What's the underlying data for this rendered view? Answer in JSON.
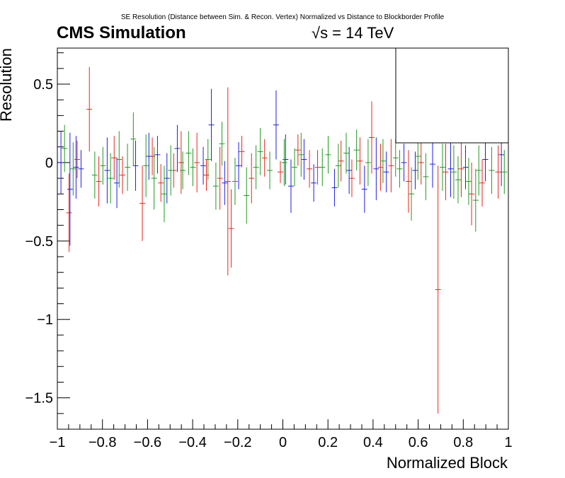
{
  "header": {
    "title": "SE Resolution (Distance between Sim. & Recon. Vertex) Normalized vs Distance to Blockborder Profile",
    "experiment": "CMS Simulation",
    "energy": "√s = 14 TeV"
  },
  "chart_data": {
    "type": "scatter",
    "title": "SE Resolution (Distance between Sim. & Recon. Vertex) Normalized vs Distance to Blockborder Profile",
    "xlabel": "Normalized Block",
    "ylabel": "Resolution",
    "xlim": [
      -1,
      1
    ],
    "ylim": [
      -1.7,
      0.73
    ],
    "xticks": [
      -1,
      -0.8,
      -0.6,
      -0.4,
      -0.2,
      0,
      0.2,
      0.4,
      0.6,
      0.8,
      1
    ],
    "xtick_labels": [
      "−1",
      "−0.8",
      "−0.6",
      "−0.4",
      "−0.2",
      "0",
      "0.2",
      "0.4",
      "0.6",
      "0.8",
      "1"
    ],
    "yticks": [
      0.5,
      0,
      -0.5,
      -1,
      -1.5
    ],
    "ytick_labels": [
      "0.5",
      "0",
      "−0.5",
      "−1",
      "−1.5"
    ],
    "grid": false,
    "legend": "top-right (empty box)",
    "colors": {
      "red": "#e8261c",
      "blue": "#1f1fe6",
      "green": "#1f9a1f"
    },
    "series": [
      {
        "color": "red",
        "points": [
          {
            "x": -0.948,
            "y": -0.32,
            "err": 0.25
          },
          {
            "x": -0.912,
            "y": 0.02,
            "err": 0.12
          },
          {
            "x": -0.858,
            "y": 0.34,
            "err": 0.27
          },
          {
            "x": -0.816,
            "y": -0.12,
            "err": 0.16
          },
          {
            "x": -0.748,
            "y": 0.03,
            "err": 0.14
          },
          {
            "x": -0.711,
            "y": -0.08,
            "err": 0.12
          },
          {
            "x": -0.623,
            "y": -0.26,
            "err": 0.24
          },
          {
            "x": -0.579,
            "y": 0.04,
            "err": 0.12
          },
          {
            "x": -0.541,
            "y": -0.13,
            "err": 0.12
          },
          {
            "x": -0.484,
            "y": -0.05,
            "err": 0.11
          },
          {
            "x": -0.451,
            "y": 0.0,
            "err": 0.2
          },
          {
            "x": -0.381,
            "y": 0.0,
            "err": 0.19
          },
          {
            "x": -0.339,
            "y": -0.08,
            "err": 0.1
          },
          {
            "x": -0.279,
            "y": -0.1,
            "err": 0.2
          },
          {
            "x": -0.244,
            "y": -0.12,
            "err": 0.6
          },
          {
            "x": -0.229,
            "y": -0.42,
            "err": 0.25
          },
          {
            "x": -0.182,
            "y": 0.07,
            "err": 0.1
          },
          {
            "x": -0.139,
            "y": -0.1,
            "err": 0.16
          },
          {
            "x": -0.081,
            "y": 0.03,
            "err": 0.12
          },
          {
            "x": -0.011,
            "y": -0.06,
            "err": 0.07
          },
          {
            "x": 0.067,
            "y": 0.08,
            "err": 0.1
          },
          {
            "x": 0.118,
            "y": -0.04,
            "err": 0.12
          },
          {
            "x": 0.154,
            "y": -0.03,
            "err": 0.11
          },
          {
            "x": 0.258,
            "y": 0.01,
            "err": 0.13
          },
          {
            "x": 0.306,
            "y": -0.1,
            "err": 0.12
          },
          {
            "x": 0.342,
            "y": 0.01,
            "err": 0.15
          },
          {
            "x": 0.394,
            "y": 0.16,
            "err": 0.23
          },
          {
            "x": 0.433,
            "y": -0.03,
            "err": 0.15
          },
          {
            "x": 0.48,
            "y": -0.02,
            "err": 0.17
          },
          {
            "x": 0.557,
            "y": -0.12,
            "err": 0.2
          },
          {
            "x": 0.613,
            "y": 0.0,
            "err": 0.14
          },
          {
            "x": 0.688,
            "y": -0.81,
            "err": 0.79
          },
          {
            "x": 0.722,
            "y": -0.06,
            "err": 0.18
          },
          {
            "x": 0.791,
            "y": -0.04,
            "err": 0.18
          },
          {
            "x": 0.837,
            "y": -0.2,
            "err": 0.2
          },
          {
            "x": 0.884,
            "y": -0.13,
            "err": 0.15
          },
          {
            "x": 0.955,
            "y": -0.06,
            "err": 0.17
          }
        ]
      },
      {
        "color": "blue",
        "points": [
          {
            "x": -0.984,
            "y": 0.0,
            "err": 0.2
          },
          {
            "x": -0.917,
            "y": -0.03,
            "err": 0.2
          },
          {
            "x": -0.944,
            "y": -0.17,
            "err": 0.36
          },
          {
            "x": -0.895,
            "y": -0.04,
            "err": 0.12
          },
          {
            "x": -0.779,
            "y": -0.05,
            "err": 0.21
          },
          {
            "x": -0.736,
            "y": -0.13,
            "err": 0.16
          },
          {
            "x": -0.653,
            "y": -0.02,
            "err": 0.16
          },
          {
            "x": -0.594,
            "y": 0.04,
            "err": 0.15
          },
          {
            "x": -0.556,
            "y": 0.05,
            "err": 0.12
          },
          {
            "x": -0.514,
            "y": -0.1,
            "err": 0.16
          },
          {
            "x": -0.468,
            "y": 0.09,
            "err": 0.15
          },
          {
            "x": -0.353,
            "y": -0.02,
            "err": 0.12
          },
          {
            "x": -0.317,
            "y": 0.24,
            "err": 0.23
          },
          {
            "x": -0.258,
            "y": -0.13,
            "err": 0.14
          },
          {
            "x": -0.196,
            "y": -0.02,
            "err": 0.15
          },
          {
            "x": -0.03,
            "y": 0.24,
            "err": 0.22
          },
          {
            "x": 0.012,
            "y": 0.02,
            "err": 0.16
          },
          {
            "x": 0.036,
            "y": -0.15,
            "err": 0.17
          },
          {
            "x": 0.094,
            "y": 0.02,
            "err": 0.13
          },
          {
            "x": 0.137,
            "y": -0.13,
            "err": 0.12
          },
          {
            "x": 0.229,
            "y": -0.16,
            "err": 0.12
          },
          {
            "x": 0.294,
            "y": -0.05,
            "err": 0.15
          },
          {
            "x": 0.362,
            "y": -0.17,
            "err": 0.15
          },
          {
            "x": 0.414,
            "y": -0.04,
            "err": 0.2
          },
          {
            "x": 0.459,
            "y": -0.06,
            "err": 0.13
          },
          {
            "x": 0.537,
            "y": 0.0,
            "err": 0.12
          },
          {
            "x": 0.587,
            "y": -0.05,
            "err": 0.12
          },
          {
            "x": 0.664,
            "y": -0.01,
            "err": 0.15
          },
          {
            "x": 0.744,
            "y": -0.04,
            "err": 0.18
          },
          {
            "x": 0.81,
            "y": -0.03,
            "err": 0.14
          },
          {
            "x": 0.898,
            "y": 0.02,
            "err": 0.14
          },
          {
            "x": 0.969,
            "y": 0.05,
            "err": 0.2
          }
        ]
      },
      {
        "color": "green",
        "points": [
          {
            "x": -0.968,
            "y": 0.09,
            "err": 0.15
          },
          {
            "x": -0.93,
            "y": -0.04,
            "err": 0.17
          },
          {
            "x": -0.834,
            "y": -0.08,
            "err": 0.15
          },
          {
            "x": -0.798,
            "y": -0.02,
            "err": 0.12
          },
          {
            "x": -0.764,
            "y": -0.1,
            "err": 0.16
          },
          {
            "x": -0.726,
            "y": 0.02,
            "err": 0.18
          },
          {
            "x": -0.689,
            "y": -0.03,
            "err": 0.15
          },
          {
            "x": -0.663,
            "y": 0.15,
            "err": 0.17
          },
          {
            "x": -0.607,
            "y": -0.02,
            "err": 0.2
          },
          {
            "x": -0.571,
            "y": -0.1,
            "err": 0.2
          },
          {
            "x": -0.526,
            "y": -0.2,
            "err": 0.18
          },
          {
            "x": -0.497,
            "y": -0.05,
            "err": 0.16
          },
          {
            "x": -0.444,
            "y": -0.05,
            "err": 0.12
          },
          {
            "x": -0.418,
            "y": 0.06,
            "err": 0.14
          },
          {
            "x": -0.399,
            "y": -0.03,
            "err": 0.12
          },
          {
            "x": -0.332,
            "y": 0.02,
            "err": 0.13
          },
          {
            "x": -0.297,
            "y": -0.15,
            "err": 0.15
          },
          {
            "x": -0.27,
            "y": 0.12,
            "err": 0.14
          },
          {
            "x": -0.212,
            "y": -0.12,
            "err": 0.15
          },
          {
            "x": -0.161,
            "y": -0.21,
            "err": 0.18
          },
          {
            "x": -0.119,
            "y": -0.03,
            "err": 0.14
          },
          {
            "x": -0.1,
            "y": 0.07,
            "err": 0.15
          },
          {
            "x": -0.058,
            "y": -0.05,
            "err": 0.12
          },
          {
            "x": 0.006,
            "y": 0.0,
            "err": 0.15
          },
          {
            "x": 0.052,
            "y": -0.03,
            "err": 0.12
          },
          {
            "x": 0.081,
            "y": 0.05,
            "err": 0.14
          },
          {
            "x": 0.175,
            "y": -0.03,
            "err": 0.12
          },
          {
            "x": 0.201,
            "y": 0.05,
            "err": 0.12
          },
          {
            "x": 0.246,
            "y": -0.02,
            "err": 0.14
          },
          {
            "x": 0.281,
            "y": 0.06,
            "err": 0.13
          },
          {
            "x": 0.327,
            "y": 0.08,
            "err": 0.13
          },
          {
            "x": 0.378,
            "y": 0.0,
            "err": 0.15
          },
          {
            "x": 0.444,
            "y": 0.01,
            "err": 0.14
          },
          {
            "x": 0.5,
            "y": 0.03,
            "err": 0.12
          },
          {
            "x": 0.518,
            "y": -0.04,
            "err": 0.12
          },
          {
            "x": 0.57,
            "y": -0.2,
            "err": 0.17
          },
          {
            "x": 0.599,
            "y": 0.04,
            "err": 0.15
          },
          {
            "x": 0.634,
            "y": -0.09,
            "err": 0.15
          },
          {
            "x": 0.708,
            "y": -0.03,
            "err": 0.15
          },
          {
            "x": 0.758,
            "y": -0.06,
            "err": 0.17
          },
          {
            "x": 0.777,
            "y": -0.11,
            "err": 0.15
          },
          {
            "x": 0.824,
            "y": -0.12,
            "err": 0.15
          },
          {
            "x": 0.855,
            "y": -0.24,
            "err": 0.2
          },
          {
            "x": 0.869,
            "y": -0.05,
            "err": 0.16
          },
          {
            "x": 0.926,
            "y": -0.05,
            "err": 0.15
          },
          {
            "x": 0.982,
            "y": -0.06,
            "err": 0.14
          }
        ]
      }
    ]
  }
}
